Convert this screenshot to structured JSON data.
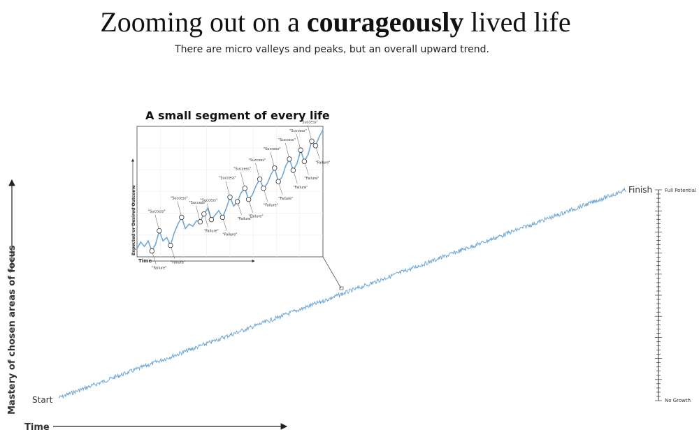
{
  "header": {
    "title_part1": "Zooming out on a ",
    "title_bold": "courageously",
    "title_part2": " lived life",
    "subtitle": "There are micro valleys and peaks, but an overall upward trend."
  },
  "chart_data": [
    {
      "type": "line",
      "id": "main",
      "title": "",
      "xlabel": "Time",
      "ylabel": "Mastery of chosen areas of focus",
      "xlim": [
        0,
        1
      ],
      "ylim": [
        0,
        1
      ],
      "series": [
        {
          "x": [
            0,
            1
          ],
          "y": [
            0.0,
            1.0
          ],
          "noise": "high-frequency jitter around the trend"
        }
      ],
      "point_labels": {
        "start": "Start",
        "finish": "Finish"
      },
      "scale_labels": {
        "top": "Full Potential",
        "bottom": "No Growth"
      },
      "grid": false,
      "color": "#6fa8d6"
    },
    {
      "type": "line",
      "id": "inset",
      "title": "A small segment of every life",
      "xlabel": "Time",
      "ylabel": "Expected or Desired Outcome",
      "grid": true,
      "color": "#6fa8d6",
      "series": [
        {
          "x": [
            0,
            1,
            2,
            3,
            4,
            5,
            6,
            7,
            8,
            9,
            10,
            11,
            12,
            13,
            14,
            15,
            16,
            17,
            18,
            19,
            20,
            21,
            22,
            23,
            24,
            25,
            26,
            27,
            28,
            29,
            30,
            31,
            32,
            33,
            34,
            35,
            36,
            37,
            38,
            39,
            40,
            41,
            42,
            43,
            44,
            45,
            46,
            47,
            48,
            49,
            50
          ],
          "y": [
            6,
            12,
            8,
            13,
            4,
            10,
            22,
            13,
            16,
            9,
            20,
            28,
            34,
            24,
            28,
            26,
            31,
            30,
            37,
            42,
            32,
            36,
            40,
            34,
            42,
            52,
            44,
            48,
            56,
            60,
            50,
            54,
            62,
            68,
            60,
            64,
            72,
            78,
            66,
            70,
            80,
            86,
            76,
            82,
            94,
            84,
            90,
            102,
            98,
            106,
            112
          ]
        }
      ],
      "annotations": [
        {
          "label": "\"Success\"",
          "x": 6
        },
        {
          "label": "\"Failure\"",
          "x": 4
        },
        {
          "label": "\"Failure\"",
          "x": 9
        },
        {
          "label": "\"Success\"",
          "x": 12
        },
        {
          "label": "\"Success\"",
          "x": 17
        },
        {
          "label": "\"Failure\"",
          "x": 18
        },
        {
          "label": "\"Success\"",
          "x": 20
        },
        {
          "label": "\"Failure\"",
          "x": 23
        },
        {
          "label": "\"Success\"",
          "x": 25
        },
        {
          "label": "\"Failure\"",
          "x": 27
        },
        {
          "label": "\"Success\"",
          "x": 29
        },
        {
          "label": "\"Failure\"",
          "x": 30
        },
        {
          "label": "\"Success\"",
          "x": 33
        },
        {
          "label": "\"Failure\"",
          "x": 34
        },
        {
          "label": "\"Success\"",
          "x": 37
        },
        {
          "label": "\"Failure\"",
          "x": 38
        },
        {
          "label": "\"Success\"",
          "x": 41
        },
        {
          "label": "\"Failure\"",
          "x": 42
        },
        {
          "label": "\"Success\"",
          "x": 44
        },
        {
          "label": "\"Failure\"",
          "x": 45
        },
        {
          "label": "\"Success\"",
          "x": 47
        },
        {
          "label": "\"Failure\"",
          "x": 48
        }
      ]
    }
  ]
}
